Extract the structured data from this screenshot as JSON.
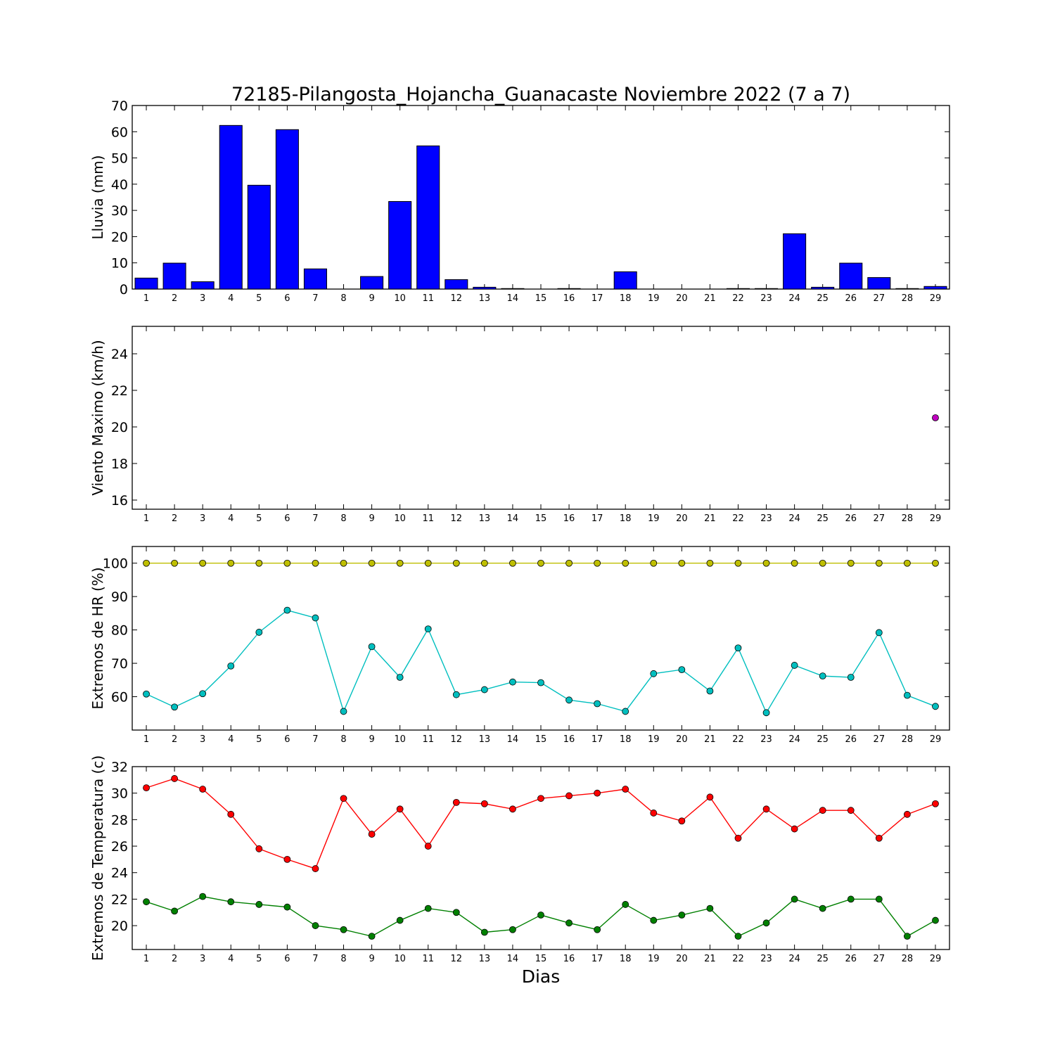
{
  "title": "72185-Pilangosta_Hojancha_Guanacaste Noviembre 2022  (7 a 7)",
  "xlabel": "Dias",
  "days": [
    "1",
    "2",
    "3",
    "4",
    "5",
    "6",
    "7",
    "8",
    "9",
    "10",
    "11",
    "12",
    "13",
    "14",
    "15",
    "16",
    "17",
    "18",
    "19",
    "20",
    "21",
    "22",
    "23",
    "24",
    "25",
    "26",
    "27",
    "28",
    "29"
  ],
  "colors": {
    "rain": "#0000ff",
    "wind": "#bf00bf",
    "hr_max": "#bfbf00",
    "hr_min": "#00bfbf",
    "temp_max": "#ff0000",
    "temp_min": "#008000"
  },
  "chart_data": [
    {
      "type": "bar",
      "ylabel": "Lluvia (mm)",
      "ylim": [
        0,
        70
      ],
      "yticks": [
        0,
        10,
        20,
        30,
        40,
        50,
        60,
        70
      ],
      "categories": [
        "1",
        "2",
        "3",
        "4",
        "5",
        "6",
        "7",
        "8",
        "9",
        "10",
        "11",
        "12",
        "13",
        "14",
        "15",
        "16",
        "17",
        "18",
        "19",
        "20",
        "21",
        "22",
        "23",
        "24",
        "25",
        "26",
        "27",
        "28",
        "29"
      ],
      "values": [
        4.2,
        9.9,
        2.8,
        62.4,
        39.6,
        60.8,
        7.7,
        0,
        4.8,
        33.4,
        54.6,
        3.6,
        0.7,
        0.2,
        0,
        0.2,
        0,
        6.6,
        0,
        0,
        0,
        0.2,
        0.2,
        21.1,
        0.7,
        9.9,
        4.4,
        0.2,
        1.0
      ]
    },
    {
      "type": "scatter",
      "ylabel": "Viento Maximo (km/h)",
      "ylim": [
        15.5,
        25.5
      ],
      "yticks": [
        16,
        18,
        20,
        22,
        24
      ],
      "series": [
        {
          "x": [
            29
          ],
          "values": [
            20.5
          ]
        }
      ]
    },
    {
      "type": "line",
      "ylabel": "Extremos de HR (%)",
      "ylim": [
        50,
        105
      ],
      "yticks": [
        60,
        70,
        80,
        90,
        100
      ],
      "series": [
        {
          "values": [
            100,
            100,
            100,
            100,
            100,
            100,
            100,
            100,
            100,
            100,
            100,
            100,
            100,
            100,
            100,
            100,
            100,
            100,
            100,
            100,
            100,
            100,
            100,
            100,
            100,
            100,
            100,
            100,
            100
          ]
        },
        {
          "values": [
            60.8,
            56.9,
            60.9,
            69.2,
            79.3,
            85.9,
            83.6,
            55.6,
            75.0,
            65.8,
            80.3,
            60.6,
            62.1,
            64.4,
            64.2,
            59.0,
            57.9,
            55.6,
            66.9,
            68.1,
            61.7,
            74.6,
            55.2,
            69.4,
            66.2,
            65.8,
            79.2,
            60.4,
            57.1
          ]
        }
      ]
    },
    {
      "type": "line",
      "ylabel": "Extremos de Temperatura (c)",
      "ylim": [
        18.2,
        32
      ],
      "yticks": [
        20,
        22,
        24,
        26,
        28,
        30,
        32
      ],
      "series": [
        {
          "values": [
            30.4,
            31.1,
            30.3,
            28.4,
            25.8,
            25.0,
            24.3,
            29.6,
            26.9,
            28.8,
            26.0,
            29.3,
            29.2,
            28.8,
            29.6,
            29.8,
            30.0,
            30.3,
            28.5,
            27.9,
            29.7,
            26.6,
            28.8,
            27.3,
            28.7,
            28.7,
            26.6,
            28.4,
            29.2
          ]
        },
        {
          "values": [
            21.8,
            21.1,
            22.2,
            21.8,
            21.6,
            21.4,
            20.0,
            19.7,
            19.2,
            20.4,
            21.3,
            21.0,
            19.5,
            19.7,
            20.8,
            20.2,
            19.7,
            21.6,
            20.4,
            20.8,
            21.3,
            19.2,
            20.2,
            22.0,
            21.3,
            22.0,
            22.0,
            19.2,
            20.4
          ]
        }
      ]
    }
  ]
}
